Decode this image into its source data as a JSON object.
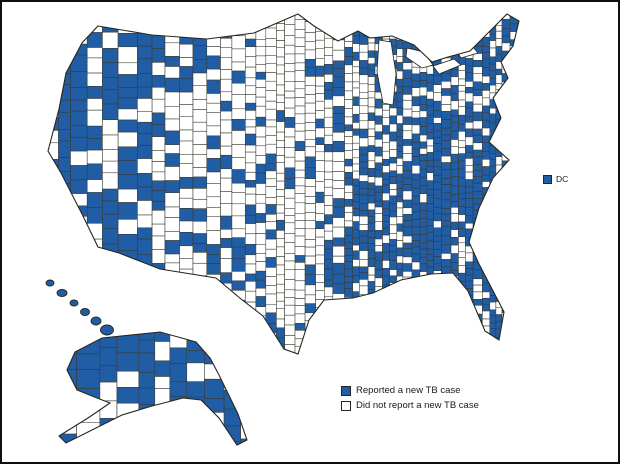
{
  "figure": {
    "kind": "choropleth map",
    "dc_item": {
      "label": "DC"
    },
    "legend": {
      "items": [
        {
          "key": "reported",
          "label": "Reported a new TB case"
        },
        {
          "key": "not_reported",
          "label": "Did not report a new TB case"
        }
      ]
    }
  },
  "colors": {
    "reported_fill": "#205DA4",
    "not_reported_fill": "#FFFFFF",
    "county_border": "#3A3A32",
    "outline": "#26261F",
    "frame_border": "#101010",
    "background": "#FFFFFF"
  },
  "chart_data": {
    "type": "choropleth-map",
    "geography": "United States by county, including Alaska, Hawaii, and DC",
    "legend": [
      "Reported a new TB case",
      "Did not report a new TB case"
    ],
    "annotations": [
      "DC"
    ],
    "category_colors": {
      "Reported a new TB case": "#205DA4",
      "Did not report a new TB case": "#FFFFFF"
    }
  }
}
